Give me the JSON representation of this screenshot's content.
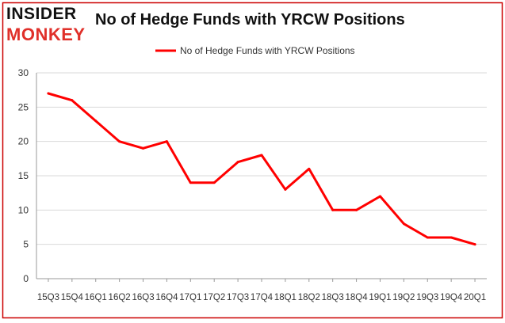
{
  "logo": {
    "line1": "INSIDER",
    "line2": "MONKEY"
  },
  "chart_data": {
    "type": "line",
    "title": "No of Hedge Funds with YRCW Positions",
    "xlabel": "",
    "ylabel": "",
    "legend": "top-center",
    "grid": true,
    "ylim": [
      0,
      30
    ],
    "yticks": [
      0,
      5,
      10,
      15,
      20,
      25,
      30
    ],
    "categories": [
      "15Q3",
      "15Q4",
      "16Q1",
      "16Q2",
      "16Q3",
      "16Q4",
      "17Q1",
      "17Q2",
      "17Q3",
      "17Q4",
      "18Q1",
      "18Q2",
      "18Q3",
      "18Q4",
      "19Q1",
      "19Q2",
      "19Q3",
      "19Q4",
      "20Q1"
    ],
    "series": [
      {
        "name": "No of Hedge Funds with YRCW  Positions",
        "color": "#ff0000",
        "values": [
          27,
          26,
          23,
          20,
          19,
          20,
          14,
          14,
          17,
          18,
          13,
          16,
          10,
          10,
          12,
          8,
          6,
          6,
          5
        ]
      }
    ]
  }
}
